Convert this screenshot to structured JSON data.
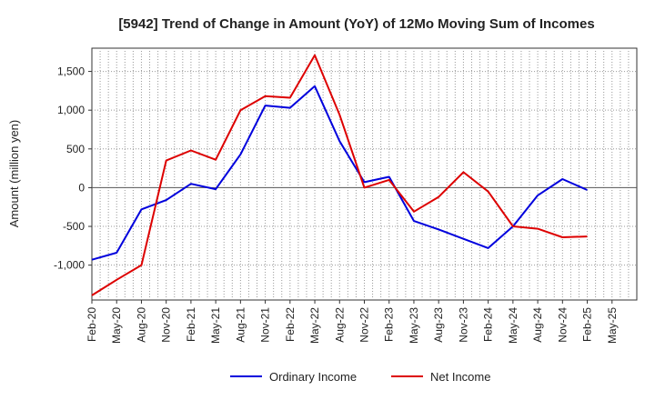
{
  "chart_data": {
    "type": "line",
    "title": "[5942]  Trend of Change in Amount (YoY) of 12Mo Moving Sum of Incomes",
    "xlabel": "",
    "ylabel": "Amount (million yen)",
    "ylim": [
      -1450,
      1800
    ],
    "yticks": [
      -1000,
      -500,
      0,
      500,
      1000,
      1500
    ],
    "ytick_labels": [
      "-1,000",
      "-500",
      "0",
      "500",
      "1,000",
      "1,500"
    ],
    "categories": [
      "Feb-20",
      "May-20",
      "Aug-20",
      "Nov-20",
      "Feb-21",
      "May-21",
      "Aug-21",
      "Nov-21",
      "Feb-22",
      "May-22",
      "Aug-22",
      "Nov-22",
      "Feb-23",
      "May-23",
      "Aug-23",
      "Nov-23",
      "Feb-24",
      "May-24",
      "Aug-24",
      "Nov-24",
      "Feb-25",
      "May-25"
    ],
    "series": [
      {
        "name": "Ordinary Income",
        "color": "#0000dd",
        "values": [
          -930,
          -840,
          -280,
          -160,
          50,
          -20,
          430,
          1060,
          1030,
          1310,
          600,
          70,
          140,
          -430,
          -540,
          -660,
          -780,
          -500,
          -100,
          110,
          -30,
          null
        ]
      },
      {
        "name": "Net Income",
        "color": "#dd0000",
        "values": [
          -1390,
          -1190,
          -1000,
          350,
          480,
          360,
          1000,
          1180,
          1160,
          1710,
          940,
          0,
          100,
          -310,
          -120,
          200,
          -50,
          -500,
          -530,
          -640,
          -630,
          null
        ]
      }
    ],
    "grid": true,
    "legend_position": "bottom"
  }
}
